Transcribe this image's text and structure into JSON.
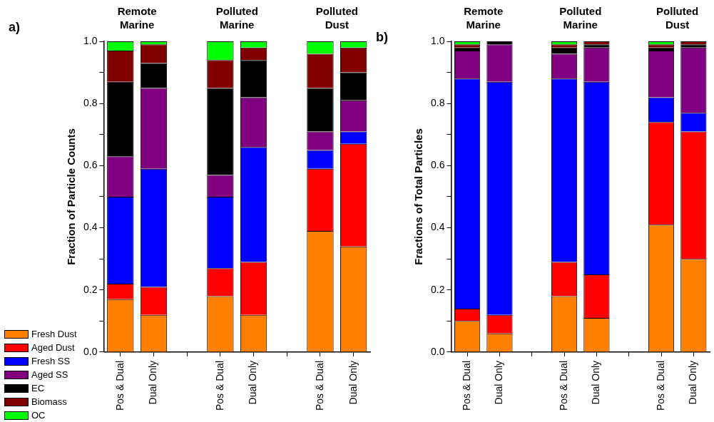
{
  "chart_data": [
    {
      "type": "bar",
      "stacked": true,
      "ylabel": "Fraction of Particle Counts",
      "annotations": [
        "a)",
        "Remote Marine",
        "Polluted Marine",
        "Polluted Dust"
      ],
      "legend": "bottom left",
      "grid": false,
      "categories": [
        "Pos & Dual",
        "Dual Only",
        null,
        "Pos & Dual",
        "Dual Only",
        null,
        "Pos & Dual",
        "Dual Only"
      ],
      "ylim": [
        0,
        1
      ],
      "yticks": [
        {
          "value": 0,
          "label": "0.0"
        },
        {
          "value": 0.1,
          "label": null
        },
        {
          "value": 0.2,
          "label": "0.2"
        },
        {
          "value": 0.3,
          "label": null
        },
        {
          "value": 0.4,
          "label": "0.4"
        },
        {
          "value": 0.5,
          "label": null
        },
        {
          "value": 0.6,
          "label": "0.6"
        },
        {
          "value": 0.7,
          "label": null
        },
        {
          "value": 0.8,
          "label": "0.8"
        },
        {
          "value": 0.9,
          "label": null
        },
        {
          "value": 1,
          "label": "1.0"
        }
      ],
      "series": [
        {
          "name": "Fresh Dust",
          "color": "#ff8000",
          "values": [
            0.17,
            0.12,
            null,
            0.18,
            0.12,
            null,
            0.39,
            0.34
          ]
        },
        {
          "name": "Aged Dust",
          "color": "#ff0000",
          "values": [
            0.05,
            0.09,
            null,
            0.09,
            0.17,
            null,
            0.2,
            0.33
          ]
        },
        {
          "name": "Fresh SS",
          "color": "#0000ff",
          "values": [
            0.28,
            0.38,
            null,
            0.23,
            0.37,
            null,
            0.06,
            0.04
          ]
        },
        {
          "name": "Aged SS",
          "color": "#800080",
          "values": [
            0.13,
            0.26,
            null,
            0.07,
            0.16,
            null,
            0.06,
            0.1
          ]
        },
        {
          "name": "EC",
          "color": "#000000",
          "values": [
            0.24,
            0.08,
            null,
            0.28,
            0.12,
            null,
            0.14,
            0.09
          ]
        },
        {
          "name": "Biomass",
          "color": "#800000",
          "values": [
            0.1,
            0.06,
            null,
            0.09,
            0.04,
            null,
            0.11,
            0.08
          ]
        },
        {
          "name": "OC",
          "color": "#00ff00",
          "values": [
            0.03,
            0.01,
            null,
            0.06,
            0.02,
            null,
            0.04,
            0.02
          ]
        }
      ]
    },
    {
      "type": "bar",
      "stacked": true,
      "ylabel": "Fractions of Total Particles",
      "annotations": [
        "b)",
        "Remote Marine",
        "Polluted Marine",
        "Polluted Dust"
      ],
      "grid": false,
      "categories": [
        "Pos & Dual",
        "Dual Only",
        null,
        "Pos & Dual",
        "Dual Only",
        null,
        "Pos & Dual",
        "Dual Only"
      ],
      "ylim": [
        0,
        1
      ],
      "yticks": [
        {
          "value": 0,
          "label": "0.0"
        },
        {
          "value": 0.1,
          "label": null
        },
        {
          "value": 0.2,
          "label": "0.2"
        },
        {
          "value": 0.3,
          "label": null
        },
        {
          "value": 0.4,
          "label": "0.4"
        },
        {
          "value": 0.5,
          "label": null
        },
        {
          "value": 0.6,
          "label": "0.6"
        },
        {
          "value": 0.7,
          "label": null
        },
        {
          "value": 0.8,
          "label": "0.8"
        },
        {
          "value": 0.9,
          "label": null
        },
        {
          "value": 1,
          "label": "1.0"
        }
      ],
      "series": [
        {
          "color": "#ff8000",
          "values": [
            0.1,
            0.06,
            null,
            0.18,
            0.11,
            null,
            0.41,
            0.3
          ]
        },
        {
          "color": "#ff0000",
          "values": [
            0.04,
            0.06,
            null,
            0.11,
            0.14,
            null,
            0.33,
            0.41
          ]
        },
        {
          "color": "#0000ff",
          "values": [
            0.74,
            0.75,
            null,
            0.59,
            0.62,
            null,
            0.08,
            0.06
          ]
        },
        {
          "color": "#800080",
          "values": [
            0.09,
            0.12,
            null,
            0.08,
            0.11,
            null,
            0.15,
            0.21
          ]
        },
        {
          "color": "#000000",
          "values": [
            0.01,
            0.01,
            null,
            0.02,
            0.01,
            null,
            0.01,
            0.01
          ]
        },
        {
          "color": "#800000",
          "values": [
            0.01,
            0,
            null,
            0.01,
            0.01,
            null,
            0.01,
            0.01
          ]
        },
        {
          "color": "#00ff00",
          "values": [
            0.01,
            0,
            null,
            0.01,
            0,
            null,
            0.01,
            0
          ]
        }
      ]
    }
  ]
}
